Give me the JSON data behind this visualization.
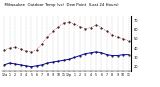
{
  "title": "  Milwaukee  Outdoor Temp (vs)  Dew Point  (Last 24 Hours)",
  "title_fontsize": 2.8,
  "line_color_temp": "#cc0000",
  "line_color_dew": "#0000cc",
  "marker_color": "#000000",
  "background_color": "#ffffff",
  "temp_values": [
    38,
    40,
    41,
    39,
    37,
    36,
    38,
    45,
    52,
    58,
    63,
    67,
    68,
    66,
    63,
    61,
    62,
    65,
    62,
    58,
    54,
    52,
    50,
    48
  ],
  "dew_values": [
    22,
    24,
    23,
    22,
    21,
    20,
    21,
    22,
    24,
    25,
    26,
    27,
    28,
    30,
    32,
    34,
    35,
    36,
    35,
    33,
    32,
    32,
    33,
    33
  ],
  "x_labels": [
    "12a",
    "1",
    "2",
    "3",
    "4",
    "5",
    "6",
    "7",
    "8",
    "9",
    "10",
    "11",
    "12p",
    "1",
    "2",
    "3",
    "4",
    "5",
    "6",
    "7",
    "8",
    "9",
    "10",
    "11"
  ],
  "ylim": [
    15,
    75
  ],
  "ytick_vals": [
    20,
    30,
    40,
    50,
    60,
    70
  ],
  "ytick_labels": [
    "20",
    "30",
    "40",
    "50",
    "60",
    "70"
  ],
  "ylabel_fontsize": 2.5,
  "xlabel_fontsize": 2.3,
  "grid_color": "#aaaaaa",
  "tick_color": "#000000",
  "spine_color": "#000000",
  "figsize": [
    1.6,
    0.87
  ],
  "dpi": 100
}
